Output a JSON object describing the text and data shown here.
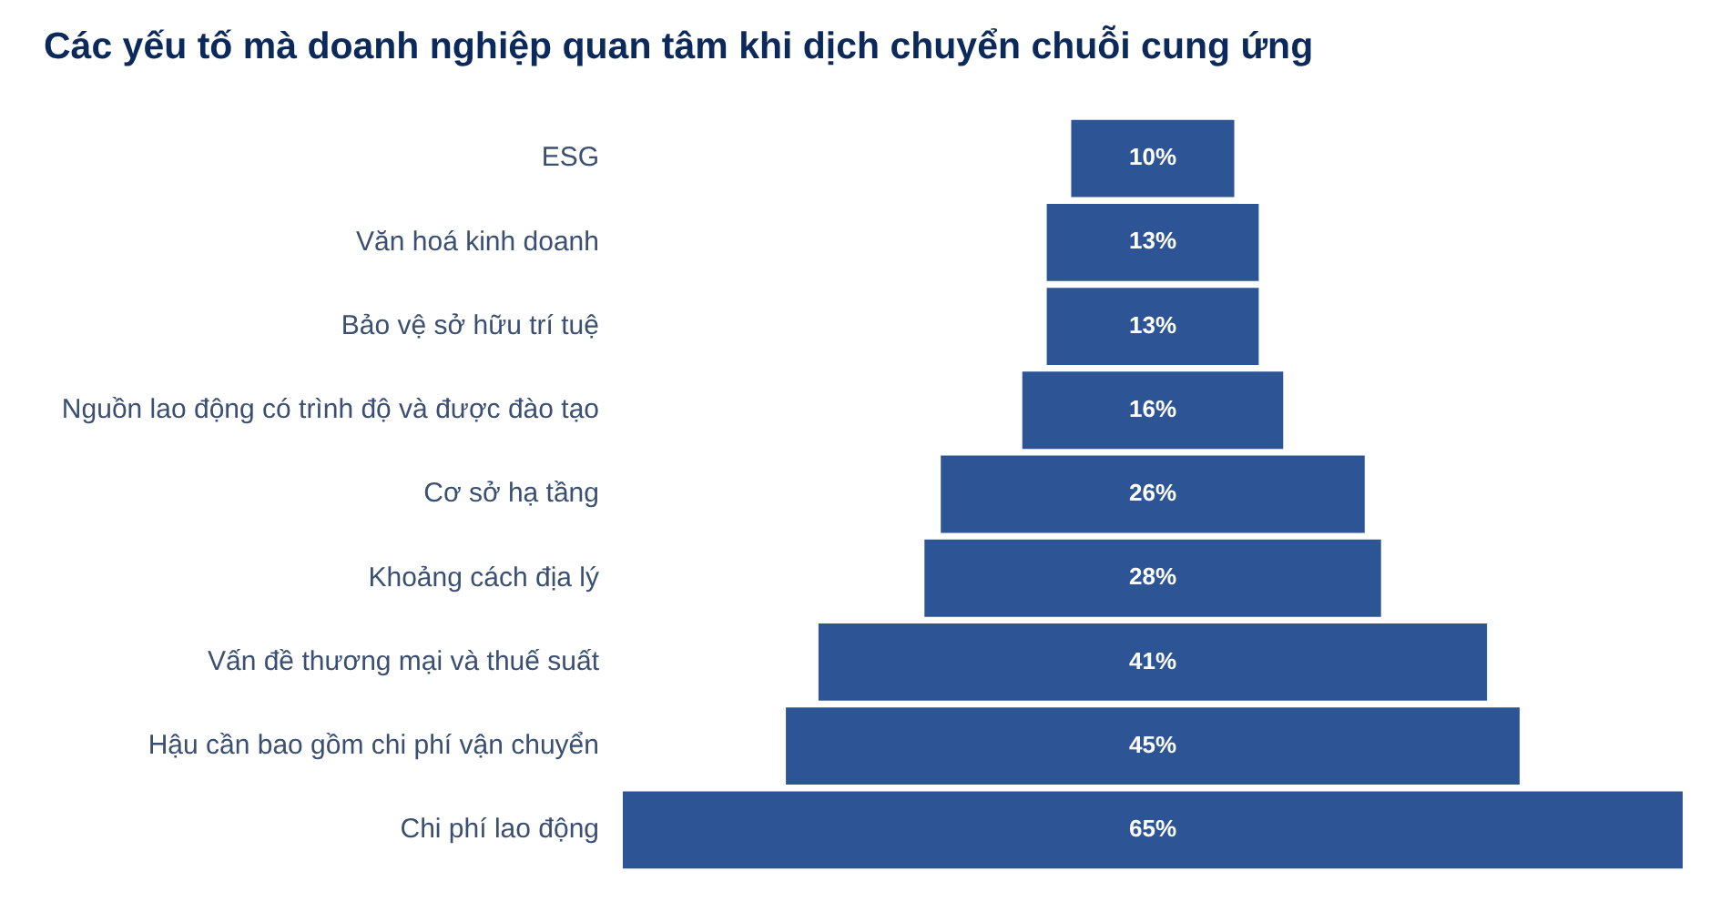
{
  "chart_data": {
    "type": "other",
    "title": "Các yếu tố mà doanh nghiệp quan tâm khi dịch chuyển chuỗi cung ứng",
    "categories": [
      "ESG",
      "Văn hoá kinh doanh",
      "Bảo vệ sở hữu trí tuệ",
      "Nguồn lao động có trình độ và được đào tạo",
      "Cơ sở hạ tầng",
      "Khoảng cách địa lý",
      "Vấn đề thương mại và thuế suất",
      "Hậu cần bao gồm chi phí vận chuyển",
      "Chi phí lao động"
    ],
    "values": [
      10,
      13,
      13,
      16,
      26,
      28,
      41,
      45,
      65
    ],
    "color": "#2d5595",
    "value_labels": [
      "10%",
      "13%",
      "13%",
      "16%",
      "26%",
      "28%",
      "41%",
      "45%",
      "65%"
    ]
  }
}
